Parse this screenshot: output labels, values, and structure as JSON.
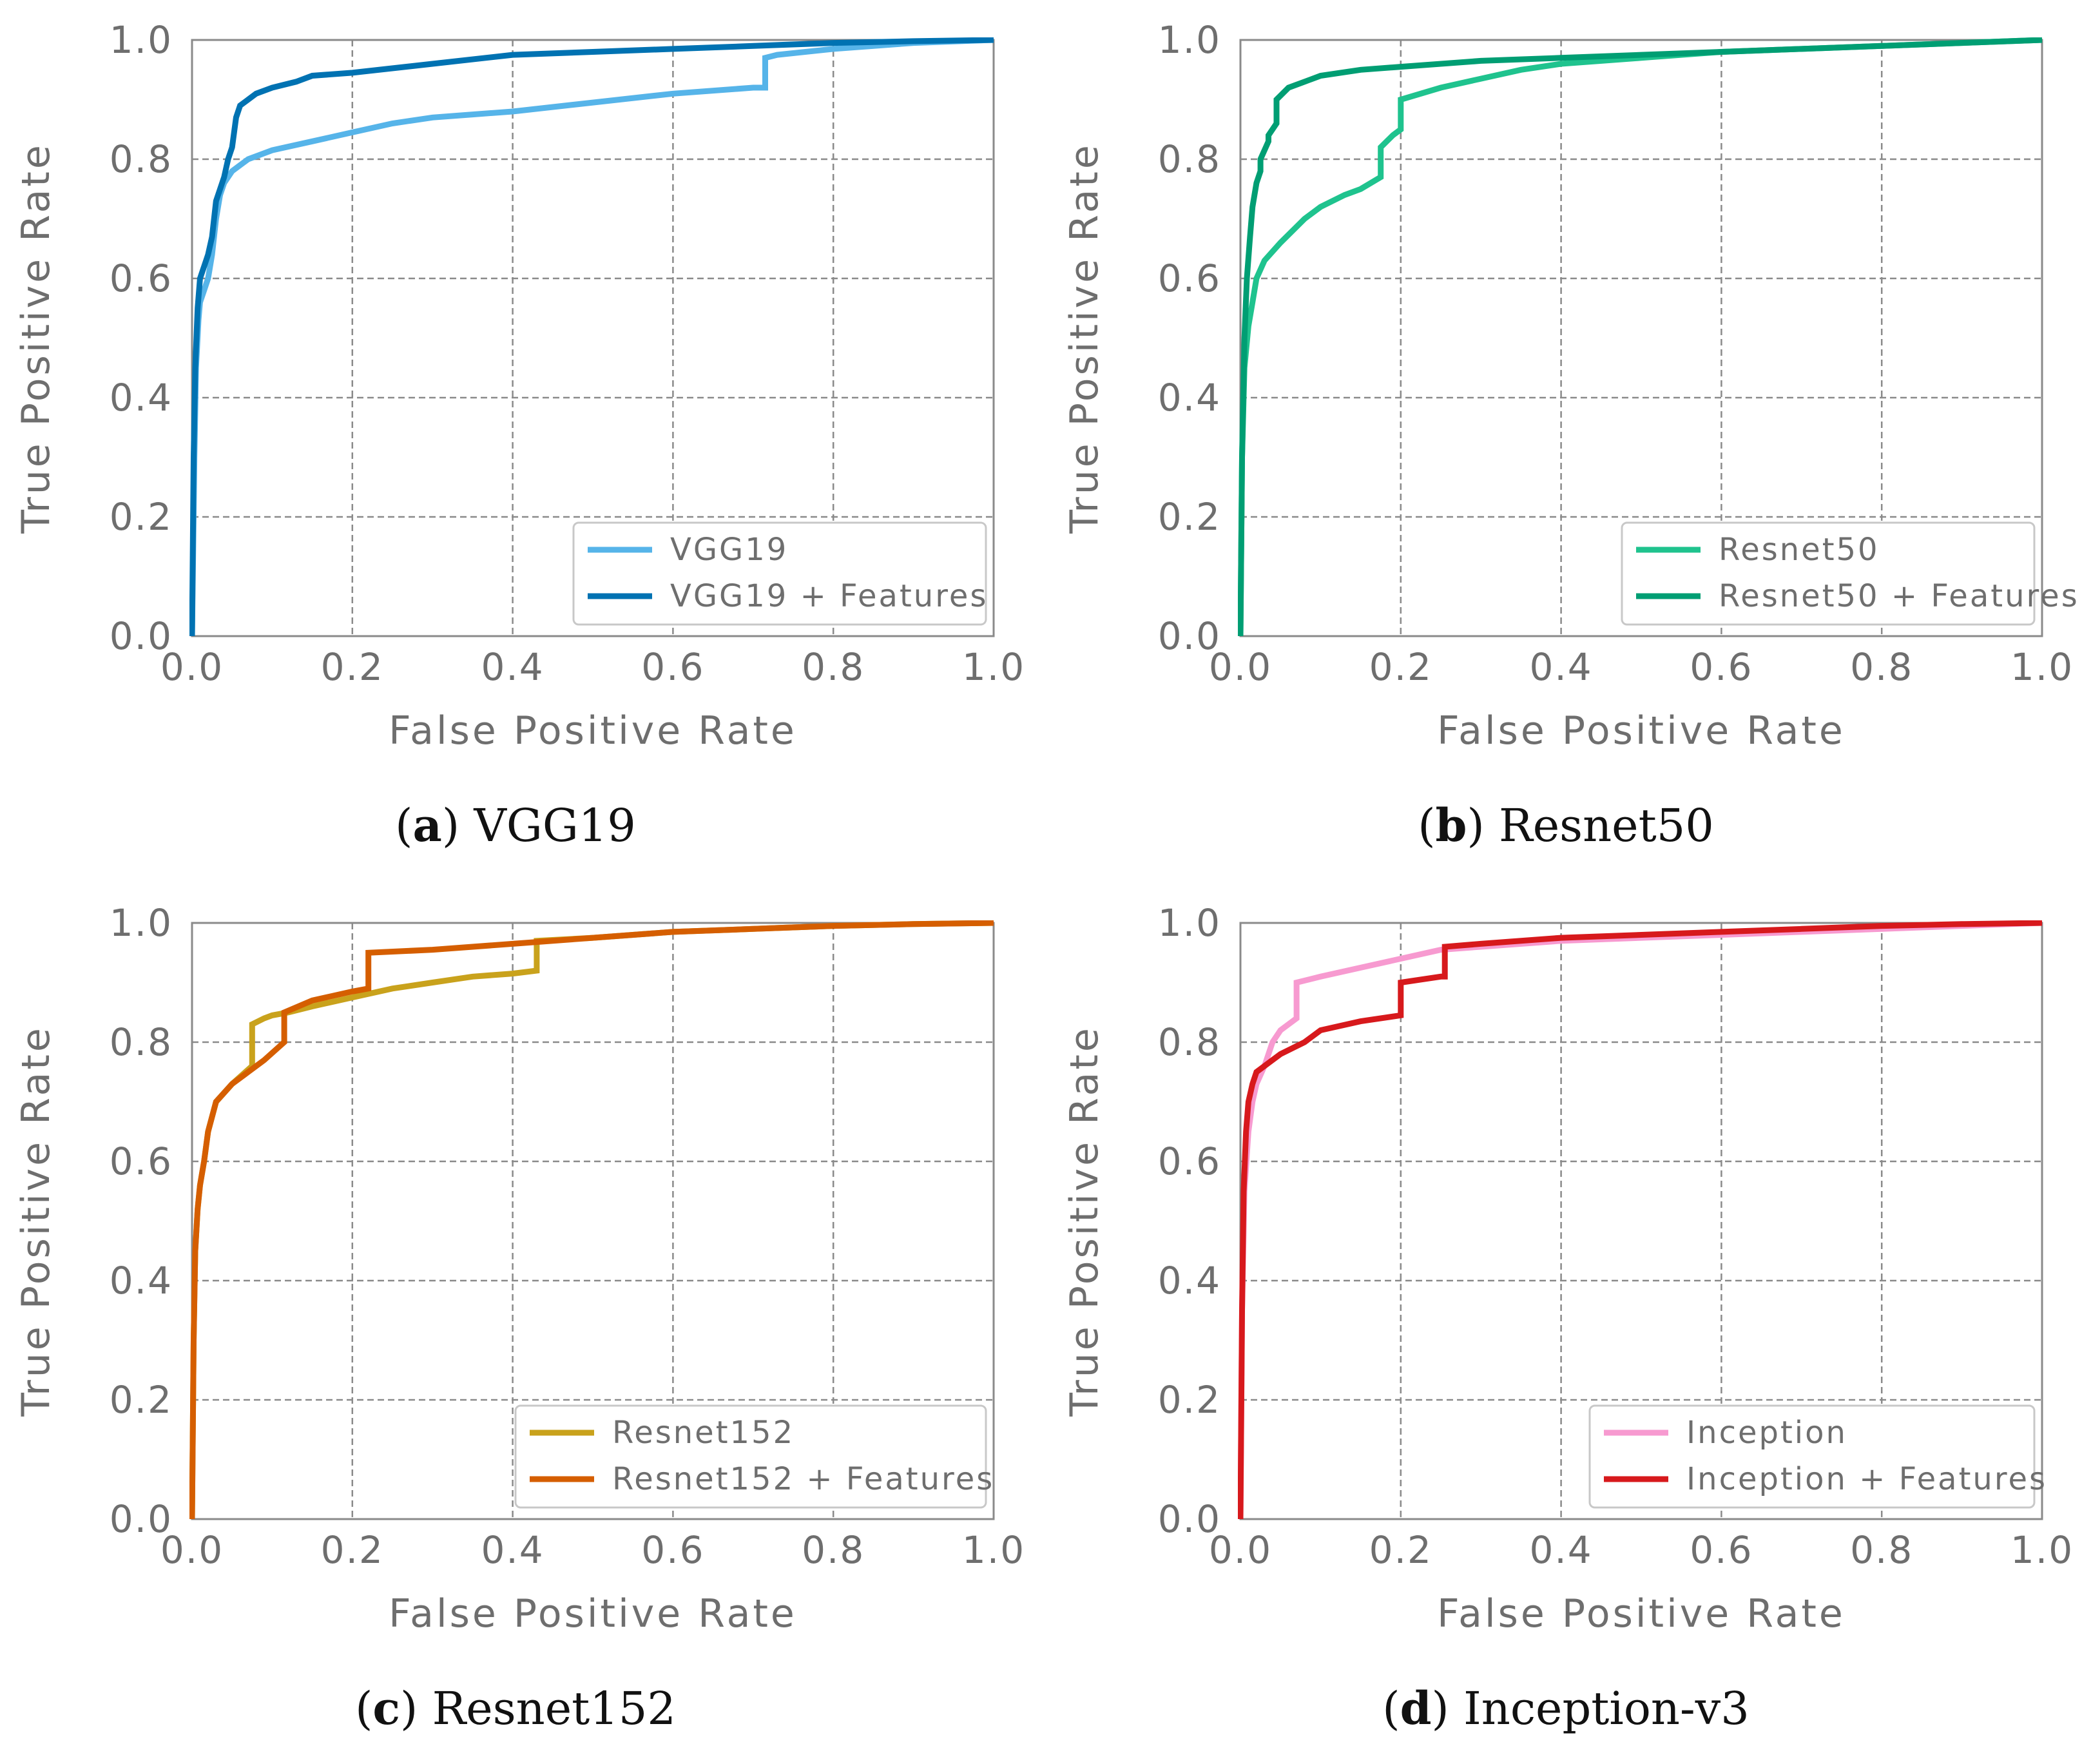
{
  "chart_data": [
    {
      "type": "line",
      "panel": "a",
      "caption_letter": "a",
      "caption_text": "VGG19",
      "xlabel": "False Positive Rate",
      "ylabel": "True Positive Rate",
      "xlim": [
        0,
        1
      ],
      "ylim": [
        0,
        1
      ],
      "xticks": [
        "0.0",
        "0.2",
        "0.4",
        "0.6",
        "0.8",
        "1.0"
      ],
      "yticks": [
        "0.0",
        "0.2",
        "0.4",
        "0.6",
        "0.8",
        "1.0"
      ],
      "grid": true,
      "legend_position": "bottom-right",
      "series": [
        {
          "name": "VGG19",
          "color": "#56b4e9",
          "x": [
            0,
            0.003,
            0.005,
            0.008,
            0.01,
            0.015,
            0.02,
            0.025,
            0.03,
            0.035,
            0.04,
            0.05,
            0.07,
            0.1,
            0.15,
            0.2,
            0.25,
            0.3,
            0.35,
            0.4,
            0.5,
            0.6,
            0.7,
            0.715,
            0.715,
            0.73,
            0.8,
            0.9,
            1.0
          ],
          "y": [
            0,
            0.3,
            0.45,
            0.53,
            0.56,
            0.58,
            0.6,
            0.64,
            0.7,
            0.74,
            0.76,
            0.78,
            0.8,
            0.815,
            0.83,
            0.845,
            0.86,
            0.87,
            0.875,
            0.88,
            0.895,
            0.91,
            0.92,
            0.92,
            0.97,
            0.975,
            0.985,
            0.995,
            1.0
          ]
        },
        {
          "name": "VGG19 + Features",
          "color": "#0072b2",
          "x": [
            0,
            0.002,
            0.004,
            0.007,
            0.01,
            0.015,
            0.02,
            0.025,
            0.03,
            0.04,
            0.045,
            0.05,
            0.055,
            0.06,
            0.07,
            0.08,
            0.1,
            0.13,
            0.15,
            0.2,
            0.3,
            0.4,
            0.5,
            0.6,
            0.7,
            0.8,
            0.9,
            1.0
          ],
          "y": [
            0,
            0.3,
            0.45,
            0.55,
            0.6,
            0.62,
            0.64,
            0.67,
            0.73,
            0.77,
            0.8,
            0.82,
            0.87,
            0.89,
            0.9,
            0.91,
            0.92,
            0.93,
            0.94,
            0.945,
            0.96,
            0.975,
            0.98,
            0.985,
            0.99,
            0.995,
            0.998,
            1.0
          ]
        }
      ]
    },
    {
      "type": "line",
      "panel": "b",
      "caption_letter": "b",
      "caption_text": "Resnet50",
      "xlabel": "False Positive Rate",
      "ylabel": "True Positive Rate",
      "xlim": [
        0,
        1
      ],
      "ylim": [
        0,
        1
      ],
      "xticks": [
        "0.0",
        "0.2",
        "0.4",
        "0.6",
        "0.8",
        "1.0"
      ],
      "yticks": [
        "0.0",
        "0.2",
        "0.4",
        "0.6",
        "0.8",
        "1.0"
      ],
      "grid": true,
      "legend_position": "bottom-right",
      "series": [
        {
          "name": "Resnet50",
          "color": "#1fc38e",
          "x": [
            0,
            0.002,
            0.005,
            0.01,
            0.015,
            0.02,
            0.03,
            0.05,
            0.08,
            0.1,
            0.13,
            0.15,
            0.175,
            0.175,
            0.19,
            0.2,
            0.2,
            0.25,
            0.3,
            0.35,
            0.4,
            0.5,
            0.6,
            0.7,
            0.8,
            0.9,
            1.0
          ],
          "y": [
            0,
            0.3,
            0.45,
            0.52,
            0.56,
            0.6,
            0.63,
            0.66,
            0.7,
            0.72,
            0.74,
            0.75,
            0.77,
            0.82,
            0.84,
            0.85,
            0.9,
            0.92,
            0.935,
            0.95,
            0.96,
            0.97,
            0.98,
            0.985,
            0.99,
            0.995,
            1.0
          ]
        },
        {
          "name": "Resnet50 + Features",
          "color": "#009e73",
          "x": [
            0,
            0.002,
            0.005,
            0.008,
            0.012,
            0.015,
            0.02,
            0.025,
            0.025,
            0.035,
            0.035,
            0.045,
            0.045,
            0.06,
            0.08,
            0.1,
            0.15,
            0.2,
            0.3,
            0.4,
            0.5,
            0.6,
            0.7,
            0.8,
            0.9,
            1.0
          ],
          "y": [
            0,
            0.3,
            0.5,
            0.6,
            0.67,
            0.72,
            0.76,
            0.78,
            0.8,
            0.83,
            0.84,
            0.86,
            0.9,
            0.92,
            0.93,
            0.94,
            0.95,
            0.955,
            0.965,
            0.97,
            0.975,
            0.98,
            0.985,
            0.99,
            0.995,
            1.0
          ]
        }
      ]
    },
    {
      "type": "line",
      "panel": "c",
      "caption_letter": "c",
      "caption_text": "Resnet152",
      "xlabel": "False Positive Rate",
      "ylabel": "True Positive Rate",
      "xlim": [
        0,
        1
      ],
      "ylim": [
        0,
        1
      ],
      "xticks": [
        "0.0",
        "0.2",
        "0.4",
        "0.6",
        "0.8",
        "1.0"
      ],
      "yticks": [
        "0.0",
        "0.2",
        "0.4",
        "0.6",
        "0.8",
        "1.0"
      ],
      "grid": true,
      "legend_position": "bottom-right",
      "series": [
        {
          "name": "Resnet152",
          "color": "#c9a21c",
          "x": [
            0,
            0.002,
            0.004,
            0.007,
            0.01,
            0.015,
            0.02,
            0.03,
            0.05,
            0.075,
            0.075,
            0.09,
            0.1,
            0.12,
            0.15,
            0.2,
            0.25,
            0.3,
            0.35,
            0.4,
            0.43,
            0.43,
            0.5,
            0.6,
            0.7,
            0.8,
            0.9,
            1.0
          ],
          "y": [
            0,
            0.3,
            0.45,
            0.52,
            0.56,
            0.6,
            0.65,
            0.7,
            0.73,
            0.76,
            0.83,
            0.84,
            0.845,
            0.85,
            0.86,
            0.875,
            0.89,
            0.9,
            0.91,
            0.915,
            0.92,
            0.97,
            0.975,
            0.985,
            0.99,
            0.995,
            0.998,
            1.0
          ]
        },
        {
          "name": "Resnet152 + Features",
          "color": "#d55e00",
          "x": [
            0,
            0.002,
            0.004,
            0.007,
            0.01,
            0.015,
            0.02,
            0.03,
            0.05,
            0.07,
            0.09,
            0.115,
            0.115,
            0.15,
            0.2,
            0.22,
            0.22,
            0.3,
            0.4,
            0.5,
            0.6,
            0.7,
            0.8,
            0.9,
            1.0
          ],
          "y": [
            0,
            0.3,
            0.45,
            0.52,
            0.56,
            0.6,
            0.65,
            0.7,
            0.73,
            0.75,
            0.77,
            0.8,
            0.85,
            0.87,
            0.885,
            0.89,
            0.95,
            0.955,
            0.965,
            0.975,
            0.985,
            0.99,
            0.995,
            0.998,
            1.0
          ]
        }
      ]
    },
    {
      "type": "line",
      "panel": "d",
      "caption_letter": "d",
      "caption_text": "Inception-v3",
      "xlabel": "False Positive Rate",
      "ylabel": "True Positive Rate",
      "xlim": [
        0,
        1
      ],
      "ylim": [
        0,
        1
      ],
      "xticks": [
        "0.0",
        "0.2",
        "0.4",
        "0.6",
        "0.8",
        "1.0"
      ],
      "yticks": [
        "0.0",
        "0.2",
        "0.4",
        "0.6",
        "0.8",
        "1.0"
      ],
      "grid": true,
      "legend_position": "bottom-right",
      "series": [
        {
          "name": "Inception",
          "color": "#f79ad0",
          "x": [
            0,
            0.002,
            0.005,
            0.01,
            0.015,
            0.02,
            0.03,
            0.04,
            0.05,
            0.07,
            0.07,
            0.1,
            0.15,
            0.2,
            0.25,
            0.3,
            0.4,
            0.5,
            0.6,
            0.7,
            0.8,
            0.9,
            1.0
          ],
          "y": [
            0,
            0.35,
            0.55,
            0.65,
            0.7,
            0.73,
            0.76,
            0.8,
            0.82,
            0.84,
            0.9,
            0.91,
            0.925,
            0.94,
            0.955,
            0.96,
            0.97,
            0.975,
            0.98,
            0.985,
            0.99,
            0.995,
            1.0
          ]
        },
        {
          "name": "Inception + Features",
          "color": "#d7191c",
          "x": [
            0,
            0.002,
            0.004,
            0.007,
            0.01,
            0.015,
            0.02,
            0.03,
            0.05,
            0.08,
            0.1,
            0.15,
            0.2,
            0.2,
            0.25,
            0.255,
            0.255,
            0.3,
            0.4,
            0.5,
            0.6,
            0.7,
            0.8,
            0.9,
            1.0
          ],
          "y": [
            0,
            0.35,
            0.55,
            0.65,
            0.7,
            0.73,
            0.75,
            0.76,
            0.78,
            0.8,
            0.82,
            0.835,
            0.845,
            0.9,
            0.91,
            0.91,
            0.96,
            0.965,
            0.975,
            0.98,
            0.985,
            0.99,
            0.995,
            0.998,
            1.0
          ]
        }
      ]
    }
  ]
}
